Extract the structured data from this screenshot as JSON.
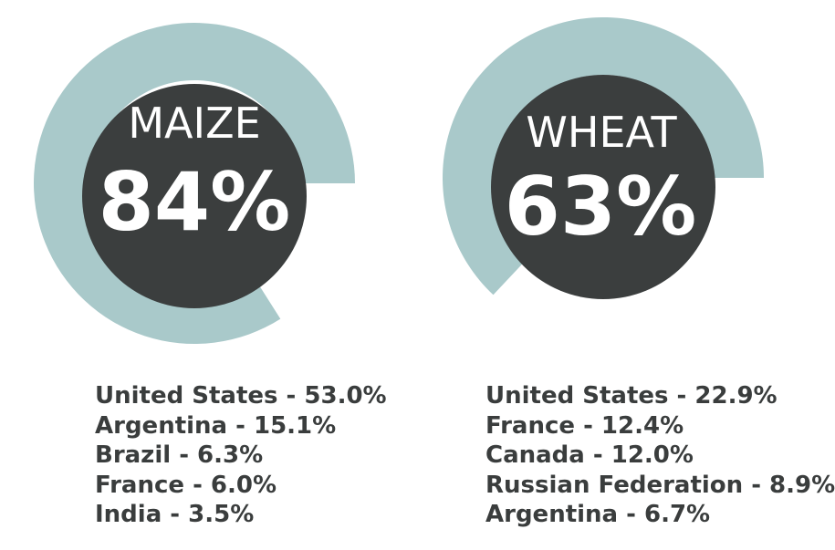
{
  "colors": {
    "ring_track": "#a9c9ca",
    "disc": "#3b3e3e",
    "label_text": "#ffffff",
    "list_text": "#3a3d3d",
    "background": "#ffffff"
  },
  "chart_data": [
    {
      "type": "pie",
      "title": "MAIZE",
      "value_label": "84%",
      "value": 84,
      "countries": [
        {
          "name": "United States",
          "value": 53.0,
          "label": "United States - 53.0%"
        },
        {
          "name": "Argentina",
          "value": 15.1,
          "label": "Argentina - 15.1%"
        },
        {
          "name": "Brazil",
          "value": 6.3,
          "label": "Brazil - 6.3%"
        },
        {
          "name": "France",
          "value": 6.0,
          "label": "France - 6.0%"
        },
        {
          "name": "India",
          "value": 3.5,
          "label": "India - 3.5%"
        }
      ]
    },
    {
      "type": "pie",
      "title": "WHEAT",
      "value_label": "63%",
      "value": 63,
      "countries": [
        {
          "name": "United States",
          "value": 22.9,
          "label": "United States - 22.9%"
        },
        {
          "name": "France",
          "value": 12.4,
          "label": "France - 12.4%"
        },
        {
          "name": "Canada",
          "value": 12.0,
          "label": "Canada - 12.0%"
        },
        {
          "name": "Russian Federation",
          "value": 8.9,
          "label": "Russian Federation - 8.9%"
        },
        {
          "name": "Argentina",
          "value": 6.7,
          "label": "Argentina - 6.7%"
        }
      ]
    }
  ]
}
